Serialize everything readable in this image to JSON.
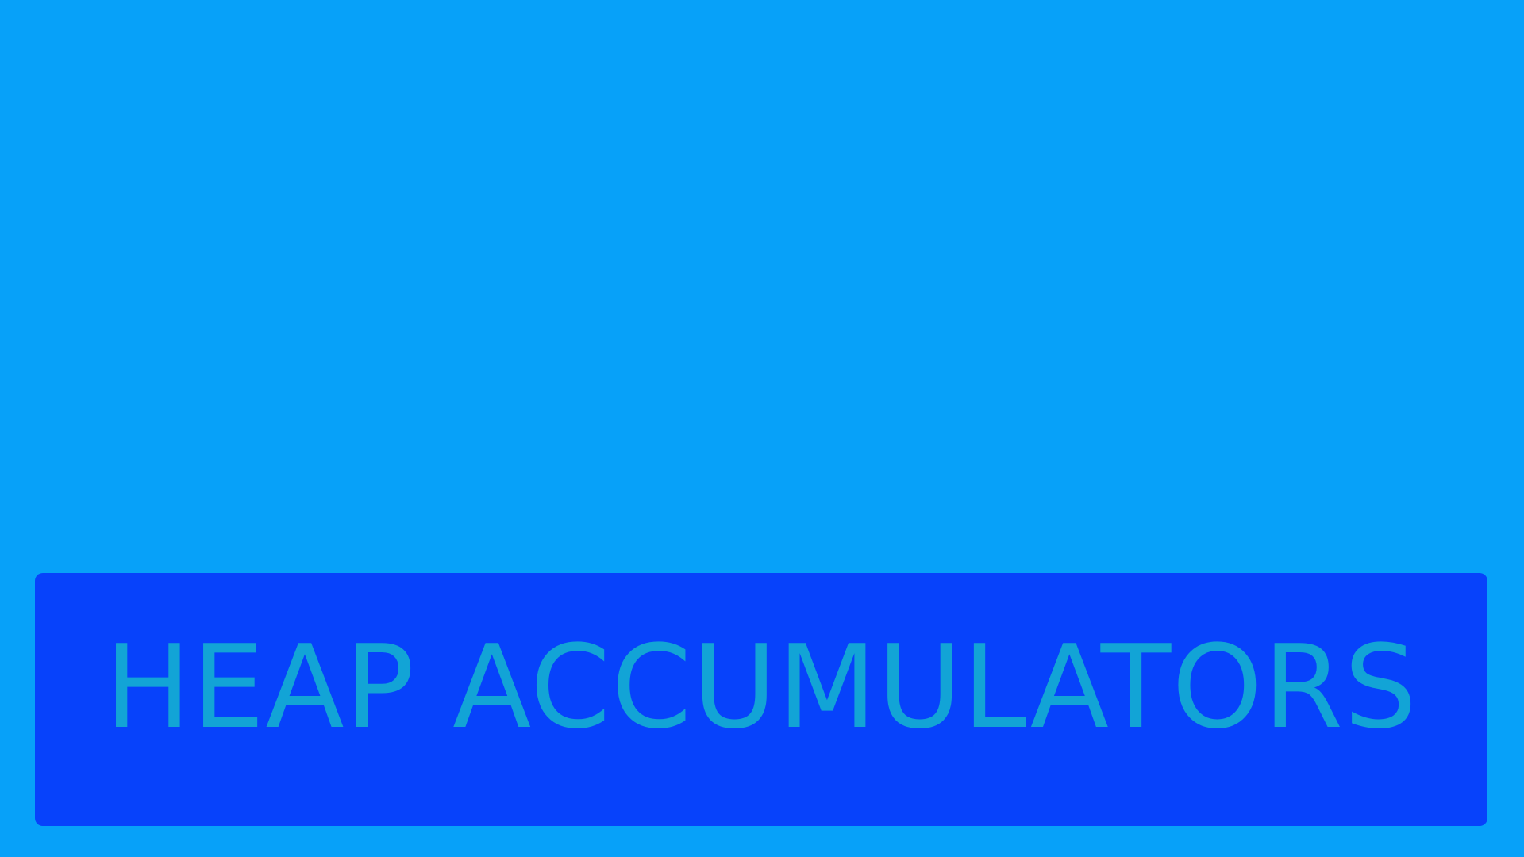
{
  "screen": {
    "title": "HEAP ACCUMULATORS"
  },
  "colors": {
    "background": "#07a1f9",
    "panel": "#0742fb",
    "title_text": "#12a4d6"
  }
}
